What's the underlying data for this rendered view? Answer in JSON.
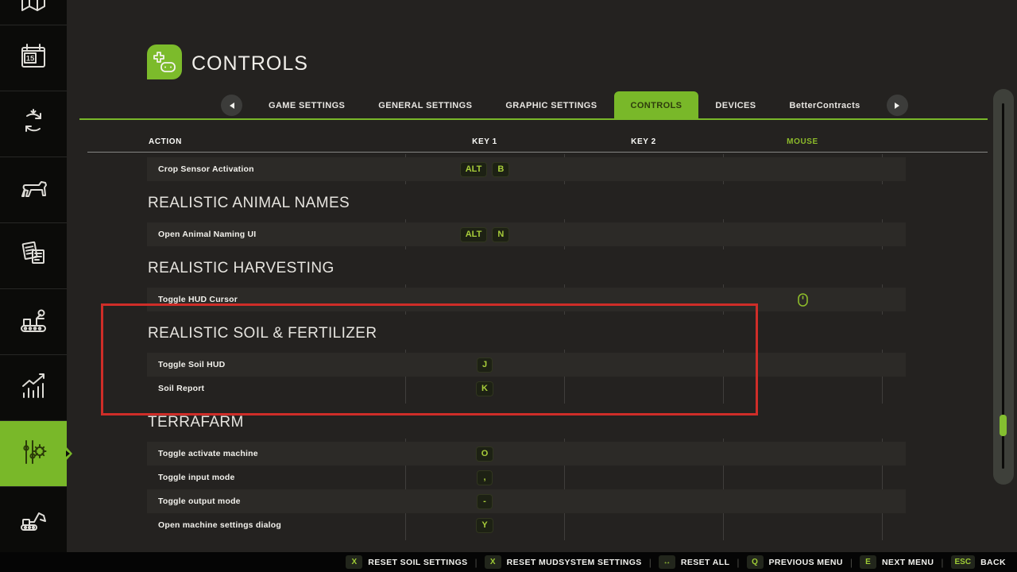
{
  "colors": {
    "accent_green": "#79b829",
    "key_text_green": "#a8cd3a",
    "mouse_header_green": "#8dbb2a",
    "highlight_red": "#cf2d28"
  },
  "sidebar": {
    "active_index": 7,
    "items": [
      {
        "icon": "map-icon"
      },
      {
        "icon": "calendar-icon",
        "label": "15"
      },
      {
        "icon": "crop-rotation-icon"
      },
      {
        "icon": "animals-icon"
      },
      {
        "icon": "contracts-icon"
      },
      {
        "icon": "production-icon"
      },
      {
        "icon": "statistics-icon"
      },
      {
        "icon": "settings-icon"
      },
      {
        "icon": "construction-icon"
      }
    ]
  },
  "header": {
    "title": "CONTROLS",
    "icon": "gamepad-icon"
  },
  "tabs": {
    "items": [
      {
        "label": "GAME SETTINGS"
      },
      {
        "label": "GENERAL SETTINGS"
      },
      {
        "label": "GRAPHIC SETTINGS"
      },
      {
        "label": "CONTROLS",
        "active": true
      },
      {
        "label": "DEVICES"
      },
      {
        "label": "BetterContracts"
      }
    ]
  },
  "table": {
    "columns": [
      "ACTION",
      "KEY 1",
      "KEY 2",
      "MOUSE"
    ],
    "sections": [
      {
        "rows": [
          {
            "action": "Crop Sensor Activation",
            "keys": [
              "ALT",
              "B"
            ]
          }
        ]
      },
      {
        "heading": "REALISTIC ANIMAL NAMES",
        "rows": [
          {
            "action": "Open Animal Naming UI",
            "keys": [
              "ALT",
              "N"
            ]
          }
        ]
      },
      {
        "heading": "REALISTIC HARVESTING",
        "rows": [
          {
            "action": "Toggle HUD Cursor",
            "keys": [],
            "mouse": true
          }
        ]
      },
      {
        "heading": "REALISTIC SOIL & FERTILIZER",
        "highlighted": true,
        "rows": [
          {
            "action": "Toggle Soil HUD",
            "keys": [
              "J"
            ]
          },
          {
            "action": "Soil Report",
            "keys": [
              "K"
            ]
          }
        ]
      },
      {
        "heading": "TERRAFARM",
        "rows": [
          {
            "action": "Toggle activate machine",
            "keys": [
              "O"
            ]
          },
          {
            "action": "Toggle input mode",
            "keys": [
              ","
            ]
          },
          {
            "action": "Toggle output mode",
            "keys": [
              "-"
            ]
          },
          {
            "action": "Open machine settings dialog",
            "keys": [
              "Y"
            ]
          }
        ]
      }
    ]
  },
  "footer": {
    "items": [
      {
        "key": "X",
        "label": "RESET SOIL SETTINGS"
      },
      {
        "key": "X",
        "label": "RESET MUDSYSTEM SETTINGS"
      },
      {
        "key": "↔",
        "label": "RESET ALL"
      },
      {
        "key": "Q",
        "label": "PREVIOUS MENU"
      },
      {
        "key": "E",
        "label": "NEXT MENU"
      },
      {
        "key": "ESC",
        "label": "BACK"
      }
    ]
  }
}
